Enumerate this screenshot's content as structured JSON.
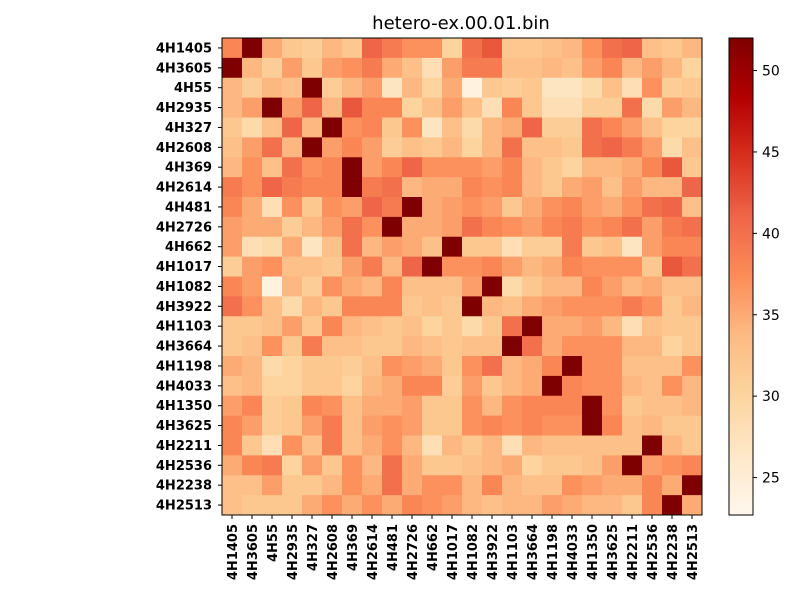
{
  "chart_data": {
    "type": "heatmap",
    "title": "hetero-ex.00.01.bin",
    "row_labels": [
      "4H1405",
      "4H3605",
      "4H55",
      "4H2935",
      "4H327",
      "4H2608",
      "4H369",
      "4H2614",
      "4H481",
      "4H2726",
      "4H662",
      "4H1017",
      "4H1082",
      "4H3922",
      "4H1103",
      "4H3664",
      "4H1198",
      "4H4033",
      "4H1350",
      "4H3625",
      "4H2211",
      "4H2536",
      "4H2238",
      "4H2513"
    ],
    "col_labels": [
      "4H1405",
      "4H3605",
      "4H55",
      "4H2935",
      "4H327",
      "4H2608",
      "4H369",
      "4H2614",
      "4H481",
      "4H2726",
      "4H662",
      "4H1017",
      "4H1082",
      "4H3922",
      "4H1103",
      "4H3664",
      "4H1198",
      "4H4033",
      "4H1350",
      "4H3625",
      "4H2211",
      "4H2536",
      "4H2238",
      "4H2513"
    ],
    "values": [
      [
        38,
        52,
        35,
        32,
        31,
        34,
        32,
        41,
        39,
        37,
        37,
        30,
        40,
        42,
        32,
        32,
        33,
        34,
        37,
        40,
        41,
        33,
        32,
        34
      ],
      [
        52,
        34,
        31,
        36,
        32,
        36,
        37,
        39,
        35,
        33,
        28,
        36,
        39,
        39,
        33,
        33,
        34,
        33,
        36,
        38,
        34,
        36,
        34,
        30
      ],
      [
        34,
        31,
        34,
        33,
        52,
        31,
        34,
        36,
        27,
        34,
        30,
        35,
        24,
        32,
        31,
        32,
        27,
        27,
        29,
        33,
        28,
        37,
        31,
        32
      ],
      [
        34,
        36,
        52,
        36,
        41,
        34,
        42,
        38,
        38,
        30,
        33,
        36,
        33,
        28,
        38,
        32,
        28,
        28,
        31,
        31,
        40,
        29,
        36,
        34
      ],
      [
        32,
        29,
        33,
        41,
        34,
        52,
        37,
        38,
        32,
        37,
        27,
        33,
        29,
        34,
        35,
        41,
        31,
        31,
        40,
        38,
        36,
        33,
        30,
        30
      ],
      [
        33,
        36,
        40,
        34,
        52,
        36,
        38,
        36,
        31,
        33,
        32,
        34,
        30,
        34,
        40,
        33,
        33,
        32,
        40,
        41,
        39,
        36,
        29,
        33
      ],
      [
        34,
        37,
        33,
        40,
        37,
        38,
        52,
        36,
        38,
        41,
        37,
        37,
        37,
        36,
        38,
        34,
        32,
        30,
        34,
        34,
        35,
        38,
        42,
        32
      ],
      [
        39,
        37,
        41,
        39,
        38,
        38,
        52,
        39,
        40,
        34,
        35,
        35,
        38,
        37,
        38,
        34,
        32,
        35,
        36,
        33,
        36,
        34,
        34,
        41
      ],
      [
        38,
        35,
        28,
        37,
        32,
        37,
        36,
        41,
        39,
        52,
        35,
        36,
        37,
        36,
        32,
        35,
        37,
        38,
        36,
        35,
        37,
        40,
        41,
        33
      ],
      [
        36,
        35,
        35,
        31,
        34,
        36,
        40,
        37,
        52,
        35,
        35,
        36,
        40,
        38,
        37,
        36,
        38,
        39,
        37,
        38,
        40,
        36,
        39,
        40
      ],
      [
        36,
        28,
        29,
        35,
        27,
        33,
        40,
        34,
        36,
        35,
        33,
        52,
        32,
        32,
        28,
        31,
        31,
        39,
        32,
        33,
        27,
        36,
        38,
        38
      ],
      [
        31,
        36,
        37,
        33,
        33,
        32,
        36,
        39,
        34,
        41,
        52,
        37,
        37,
        38,
        36,
        34,
        35,
        38,
        37,
        37,
        37,
        32,
        42,
        40
      ],
      [
        38,
        36,
        24,
        34,
        31,
        37,
        35,
        34,
        38,
        33,
        33,
        33,
        36,
        52,
        29,
        32,
        34,
        34,
        38,
        36,
        34,
        35,
        33,
        33
      ],
      [
        40,
        37,
        33,
        29,
        34,
        32,
        38,
        38,
        38,
        32,
        33,
        32,
        52,
        34,
        33,
        35,
        36,
        37,
        37,
        37,
        39,
        37,
        32,
        34
      ],
      [
        32,
        32,
        33,
        36,
        32,
        38,
        34,
        33,
        32,
        33,
        30,
        32,
        29,
        32,
        40,
        52,
        35,
        35,
        36,
        34,
        28,
        33,
        32,
        32
      ],
      [
        32,
        33,
        37,
        32,
        39,
        33,
        33,
        32,
        32,
        34,
        33,
        32,
        33,
        33,
        52,
        40,
        35,
        37,
        37,
        37,
        34,
        34,
        30,
        32
      ],
      [
        35,
        34,
        29,
        30,
        32,
        32,
        31,
        33,
        37,
        36,
        35,
        32,
        37,
        40,
        34,
        35,
        38,
        52,
        37,
        37,
        33,
        33,
        33,
        37
      ],
      [
        33,
        34,
        30,
        30,
        32,
        32,
        30,
        34,
        35,
        38,
        38,
        31,
        36,
        32,
        34,
        35,
        52,
        38,
        37,
        37,
        34,
        33,
        37,
        34
      ],
      [
        36,
        38,
        31,
        32,
        38,
        37,
        33,
        35,
        35,
        36,
        32,
        32,
        37,
        34,
        37,
        38,
        38,
        38,
        52,
        37,
        32,
        33,
        33,
        34
      ],
      [
        38,
        36,
        31,
        32,
        36,
        39,
        33,
        36,
        37,
        36,
        32,
        32,
        37,
        38,
        37,
        38,
        37,
        37,
        52,
        38,
        33,
        34,
        32,
        32
      ],
      [
        38,
        32,
        28,
        37,
        33,
        39,
        33,
        35,
        37,
        34,
        28,
        34,
        32,
        34,
        28,
        34,
        33,
        33,
        33,
        33,
        33,
        52,
        34,
        32
      ],
      [
        35,
        38,
        39,
        30,
        36,
        32,
        37,
        34,
        40,
        35,
        32,
        32,
        33,
        34,
        35,
        30,
        32,
        32,
        33,
        36,
        52,
        36,
        37,
        38
      ],
      [
        33,
        33,
        36,
        32,
        32,
        34,
        37,
        35,
        40,
        35,
        37,
        37,
        34,
        38,
        34,
        33,
        33,
        37,
        36,
        35,
        35,
        38,
        35,
        52
      ],
      [
        33,
        32,
        32,
        32,
        35,
        37,
        35,
        37,
        35,
        38,
        37,
        36,
        34,
        33,
        34,
        34,
        36,
        35,
        34,
        34,
        32,
        38,
        52,
        35
      ]
    ],
    "vmin": 22.7,
    "vmax": 52,
    "colorbar_ticks": [
      25,
      30,
      35,
      40,
      45,
      50
    ],
    "colormap": "OrRd"
  }
}
